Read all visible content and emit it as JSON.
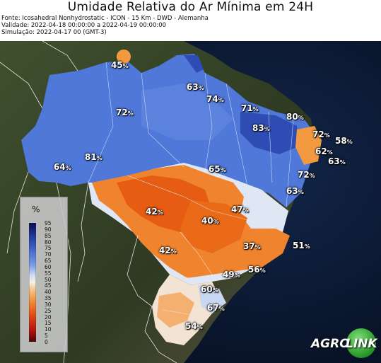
{
  "header": {
    "title": "Umidade Relativa do Ar Mínima em 24H",
    "source": "Fonte: Icosahedral Nonhydrostatic - ICON - 15 Km - DWD - Alemanha",
    "validity": "Validade: 2022-04-18 00:00:00 a 2022-04-19 00:00:00",
    "simulation": "Simulação: 2022-04-17 00 (GMT-3)"
  },
  "map": {
    "variable": "Umidade Relativa do Ar Mínima",
    "region": "Brasil",
    "labels": [
      {
        "value": "45",
        "unit": "%"
      },
      {
        "value": "63",
        "unit": "%"
      },
      {
        "value": "74",
        "unit": "%"
      },
      {
        "value": "71",
        "unit": "%"
      },
      {
        "value": "80",
        "unit": "%"
      },
      {
        "value": "72",
        "unit": "%"
      },
      {
        "value": "83",
        "unit": "%"
      },
      {
        "value": "72",
        "unit": "%"
      },
      {
        "value": "58",
        "unit": "%"
      },
      {
        "value": "62",
        "unit": "%"
      },
      {
        "value": "63",
        "unit": "%"
      },
      {
        "value": "81",
        "unit": "%"
      },
      {
        "value": "64",
        "unit": "%"
      },
      {
        "value": "65",
        "unit": "%"
      },
      {
        "value": "72",
        "unit": "%"
      },
      {
        "value": "63",
        "unit": "%"
      },
      {
        "value": "47",
        "unit": "%"
      },
      {
        "value": "42",
        "unit": "%"
      },
      {
        "value": "40",
        "unit": "%"
      },
      {
        "value": "37",
        "unit": "%"
      },
      {
        "value": "51",
        "unit": "%"
      },
      {
        "value": "42",
        "unit": "%"
      },
      {
        "value": "56",
        "unit": "%"
      },
      {
        "value": "49",
        "unit": "%"
      },
      {
        "value": "60",
        "unit": "%"
      },
      {
        "value": "67",
        "unit": "%"
      },
      {
        "value": "54",
        "unit": "%"
      }
    ],
    "colors": {
      "very_humid": "#1b2a8a",
      "humid": "#4f78d8",
      "moderate": "#aac4f2",
      "neutral": "#f2f2f2",
      "dry": "#f6a24a",
      "very_dry": "#e8560e",
      "ocean": "#0c1a36",
      "land_outside": "#3b4a2c"
    }
  },
  "legend": {
    "unit": "%",
    "ticks": [
      "95",
      "90",
      "85",
      "80",
      "75",
      "70",
      "65",
      "60",
      "55",
      "50",
      "45",
      "40",
      "35",
      "30",
      "25",
      "20",
      "15",
      "10",
      "5",
      "0"
    ]
  },
  "logo": {
    "part1": "AGRO",
    "part2": "LINK"
  }
}
